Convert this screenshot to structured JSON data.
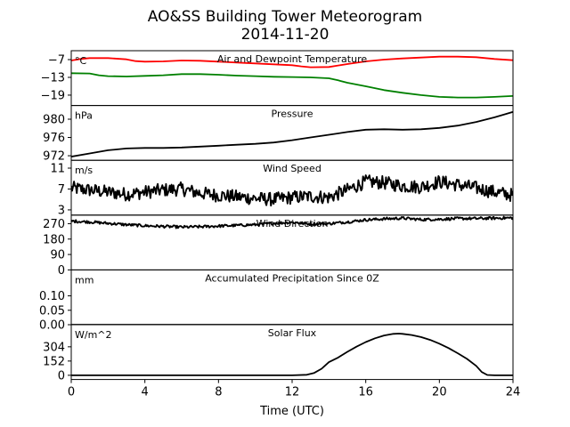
{
  "figure": {
    "title": "AO&SS Building Tower Meteorogram",
    "subtitle": "2014-11-20",
    "xlabel": "Time (UTC)"
  },
  "chart_data": {
    "type": "line",
    "x_range": [
      0,
      24
    ],
    "x_ticks": [
      "0",
      "4",
      "8",
      "12",
      "16",
      "20",
      "24"
    ],
    "x_tick_values": [
      0,
      4,
      8,
      12,
      16,
      20,
      24
    ],
    "panels": [
      {
        "id": "temperature",
        "title": "Air and Dewpoint Temperature",
        "unit": "°C",
        "ylim": [
          -22.5,
          -4
        ],
        "y_ticks": [
          -7,
          -13,
          -19
        ],
        "y_tick_labels": [
          "−7",
          "−13",
          "−19"
        ],
        "series": [
          {
            "color": "#ff0000",
            "x": [
              0,
              0.5,
              1,
              2,
              3,
              3.5,
              4,
              5,
              6,
              7,
              8,
              9,
              10,
              11,
              12,
              12.5,
              13,
              14,
              15,
              16,
              17,
              18,
              19,
              20,
              21,
              22,
              23,
              24
            ],
            "y": [
              -7.3,
              -6.8,
              -6.5,
              -6.5,
              -6.9,
              -7.5,
              -7.7,
              -7.6,
              -7.3,
              -7.4,
              -7.7,
              -8.0,
              -8.3,
              -8.6,
              -8.9,
              -9.3,
              -9.6,
              -9.5,
              -8.5,
              -7.6,
              -7.0,
              -6.6,
              -6.3,
              -6.0,
              -6.0,
              -6.2,
              -6.8,
              -7.2
            ]
          },
          {
            "color": "#008000",
            "x": [
              0,
              1,
              1.5,
              2,
              3,
              4,
              5,
              6,
              7,
              8,
              9,
              10,
              11,
              12,
              13,
              14,
              14.5,
              15,
              16,
              17,
              18,
              19,
              20,
              21,
              22,
              23,
              24
            ],
            "y": [
              -11.6,
              -11.7,
              -12.3,
              -12.6,
              -12.7,
              -12.5,
              -12.3,
              -11.9,
              -11.9,
              -12.1,
              -12.4,
              -12.6,
              -12.8,
              -12.9,
              -13.0,
              -13.3,
              -14.0,
              -14.8,
              -16.0,
              -17.3,
              -18.2,
              -19.0,
              -19.6,
              -19.8,
              -19.8,
              -19.6,
              -19.3
            ]
          }
        ]
      },
      {
        "id": "pressure",
        "title": "Pressure",
        "unit": "hPa",
        "ylim": [
          971,
          983
        ],
        "y_ticks": [
          972,
          976,
          980
        ],
        "y_tick_labels": [
          "972",
          "976",
          "980"
        ],
        "series": [
          {
            "color": "#000000",
            "x": [
              0,
              1,
              2,
              3,
              4,
              5,
              6,
              7,
              8,
              9,
              10,
              11,
              12,
              13,
              14,
              15,
              16,
              17,
              18,
              19,
              20,
              21,
              22,
              23,
              24
            ],
            "y": [
              971.8,
              972.5,
              973.2,
              973.6,
              973.7,
              973.7,
              973.8,
              974.0,
              974.2,
              974.4,
              974.6,
              974.9,
              975.4,
              976.0,
              976.6,
              977.2,
              977.7,
              977.8,
              977.7,
              977.8,
              978.1,
              978.6,
              979.4,
              980.4,
              981.6
            ]
          }
        ]
      },
      {
        "id": "wind_speed",
        "title": "Wind Speed",
        "unit": "m/s",
        "ylim": [
          2,
          12.5
        ],
        "y_ticks": [
          3,
          7,
          11
        ],
        "y_tick_labels": [
          "3",
          "7",
          "11"
        ],
        "series": [
          {
            "color": "#000000",
            "noise": 1.3,
            "x": [
              0,
              1,
              2,
              3,
              4,
              5,
              6,
              7,
              8,
              9,
              10,
              11,
              12,
              13,
              14,
              15,
              16,
              17,
              18,
              19,
              20,
              21,
              22,
              23,
              24
            ],
            "y": [
              7.2,
              6.8,
              6.4,
              6.0,
              6.4,
              6.8,
              7.0,
              6.2,
              5.8,
              5.5,
              5.2,
              5.0,
              5.4,
              5.6,
              5.4,
              6.8,
              8.4,
              8.2,
              7.6,
              7.4,
              8.4,
              7.8,
              7.2,
              6.4,
              5.8
            ]
          }
        ]
      },
      {
        "id": "wind_direction",
        "title": "Wind Direction",
        "unit": "",
        "ylim": [
          0,
          320
        ],
        "y_ticks": [
          0,
          90,
          180,
          270
        ],
        "y_tick_labels": [
          "0",
          "90",
          "180",
          "270"
        ],
        "series": [
          {
            "color": "#000000",
            "noise": 8,
            "x": [
              0,
              1,
              2,
              3,
              4,
              5,
              6,
              7,
              8,
              9,
              10,
              11,
              12,
              13,
              14,
              15,
              16,
              17,
              18,
              19,
              20,
              21,
              22,
              23,
              24
            ],
            "y": [
              285,
              280,
              272,
              264,
              258,
              254,
              250,
              252,
              256,
              260,
              264,
              272,
              278,
              268,
              270,
              280,
              292,
              298,
              302,
              294,
              296,
              300,
              300,
              302,
              304
            ]
          }
        ]
      },
      {
        "id": "precipitation",
        "title": "Accumulated Precipitation Since 0Z",
        "unit": "mm",
        "ylim": [
          0,
          0.19
        ],
        "y_ticks": [
          0.0,
          0.05,
          0.1
        ],
        "y_tick_labels": [
          "0.00",
          "0.05",
          "0.10"
        ],
        "series": [
          {
            "color": "#000000",
            "x": [
              0,
              24
            ],
            "y": [
              0,
              0
            ]
          }
        ]
      },
      {
        "id": "solar_flux",
        "title": "Solar Flux",
        "unit": "W/m^2",
        "ylim": [
          -45,
          540
        ],
        "y_ticks": [
          0,
          152,
          304
        ],
        "y_tick_labels": [
          "0",
          "152",
          "304"
        ],
        "series": [
          {
            "color": "#000000",
            "x": [
              0,
              12,
              12.8,
              13.2,
              13.6,
              14,
              14.5,
              15,
              15.5,
              16,
              16.5,
              17,
              17.5,
              17.8,
              18,
              18.5,
              19,
              19.5,
              20,
              20.5,
              21,
              21.5,
              22,
              22.3,
              22.6,
              23,
              24
            ],
            "y": [
              0,
              0,
              5,
              25,
              70,
              140,
              190,
              250,
              305,
              355,
              395,
              425,
              442,
              445,
              442,
              430,
              408,
              378,
              338,
              290,
              235,
              175,
              100,
              35,
              3,
              0,
              0
            ]
          }
        ]
      }
    ]
  }
}
